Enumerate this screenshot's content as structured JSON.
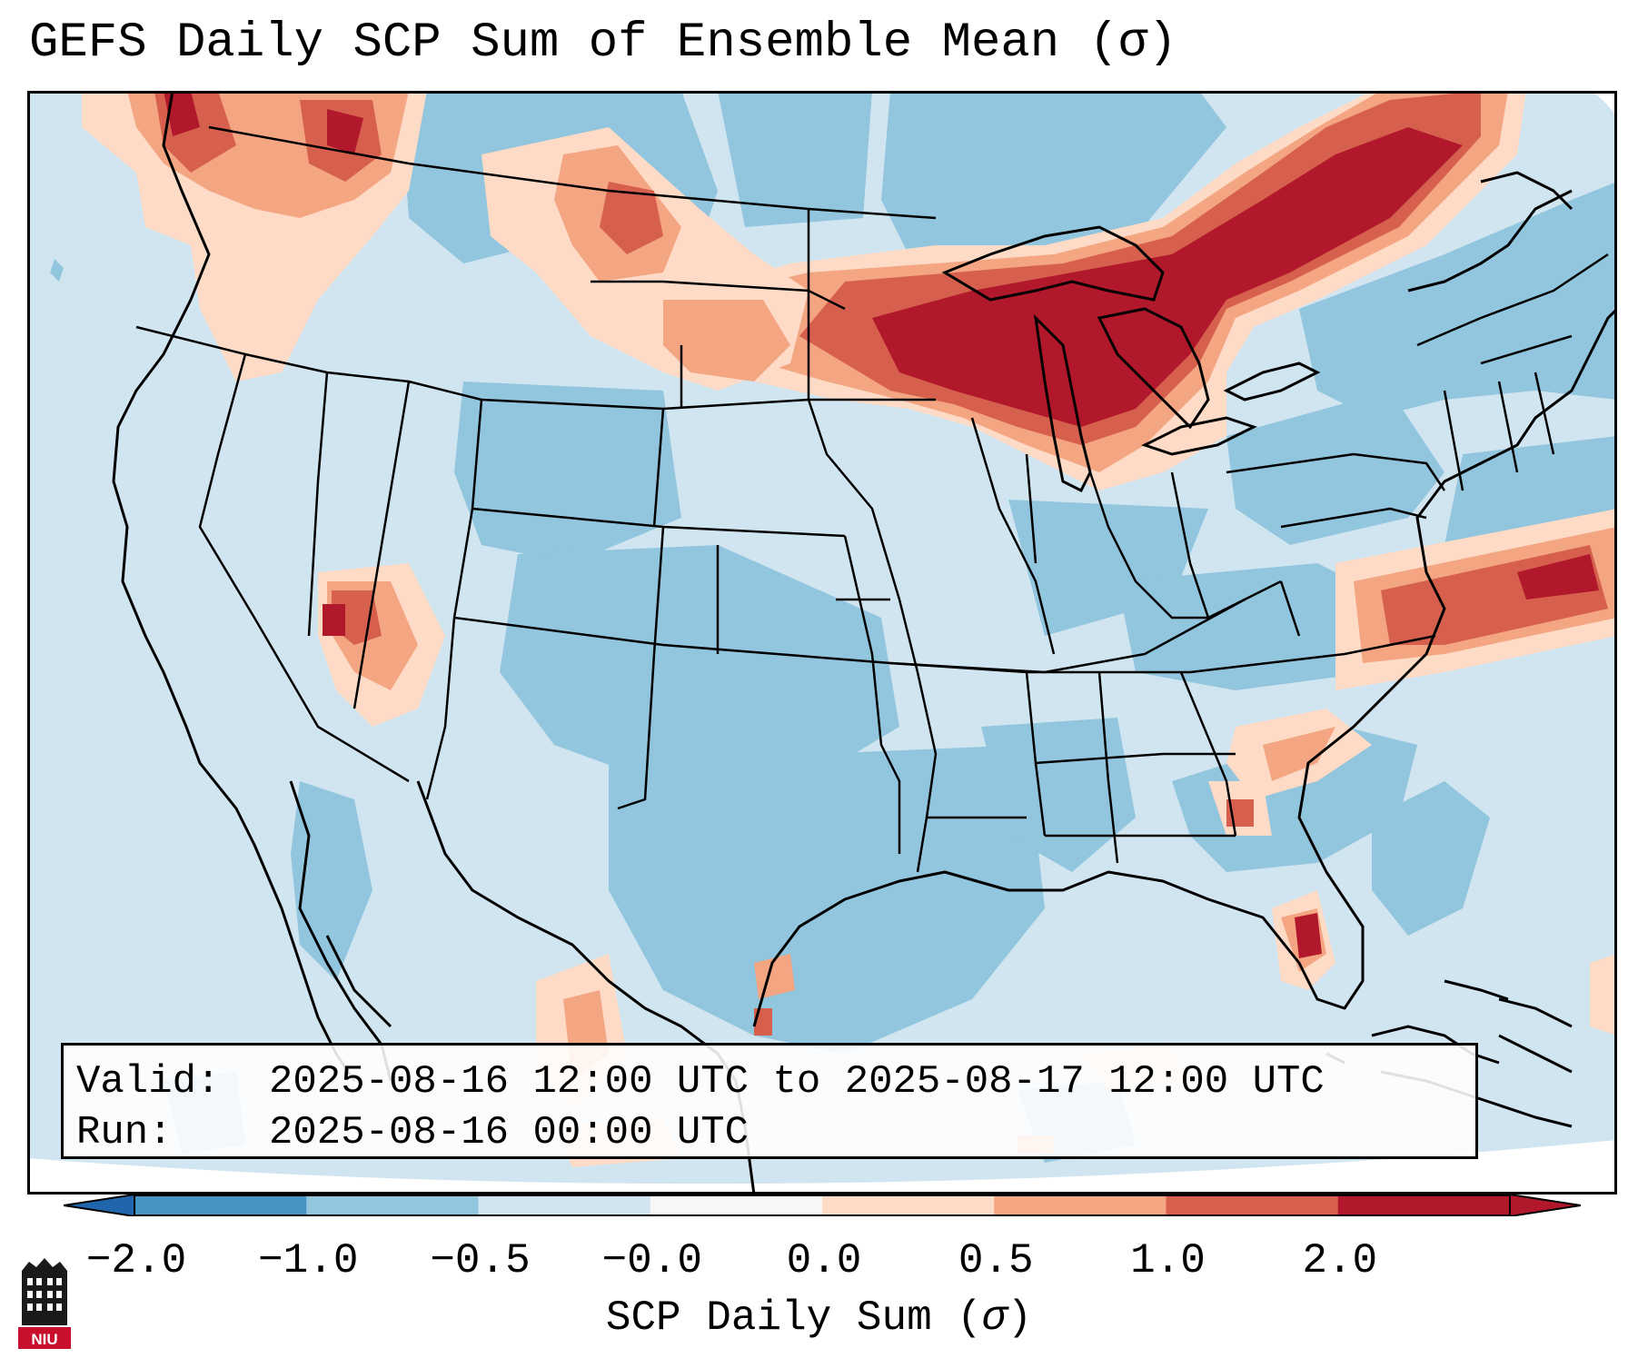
{
  "title": "GEFS Daily SCP Sum of Ensemble Mean (σ)",
  "info": {
    "valid_label": "Valid:",
    "valid_value": "2025-08-16 12:00 UTC to 2025-08-17 12:00 UTC",
    "run_label": "Run:",
    "run_value": "2025-08-16 00:00 UTC"
  },
  "colorbar": {
    "title": "SCP Daily Sum (",
    "title_symbol": "σ",
    "title_end": ")",
    "ticks": [
      "−2.0",
      "−1.0",
      "−0.5",
      "−0.0",
      "0.0",
      "0.5",
      "1.0",
      "2.0"
    ],
    "colors": [
      "#4593c3",
      "#92c5de",
      "#d1e5f0",
      "#f7f7f7",
      "#fddbc7",
      "#f4a582",
      "#d6604d",
      "#b2182b"
    ],
    "extend_low_color": "#2166ac",
    "extend_high_color": "#b2182b"
  },
  "map": {
    "background": "#d1e5f0",
    "land_negative_color": "#92c5de",
    "regions": [
      {
        "name": "Upper Great Lakes",
        "value": 2.0
      },
      {
        "name": "Quebec",
        "value": 2.0
      },
      {
        "name": "Pacific Northwest",
        "value": 1.0
      },
      {
        "name": "Southern Nevada",
        "value": 1.0
      },
      {
        "name": "Northern Plains",
        "value": 0.5
      },
      {
        "name": "Atlantic offshore",
        "value": 1.0
      },
      {
        "name": "Southwest Florida",
        "value": 2.0
      }
    ]
  },
  "logo": {
    "text": "NIU"
  }
}
